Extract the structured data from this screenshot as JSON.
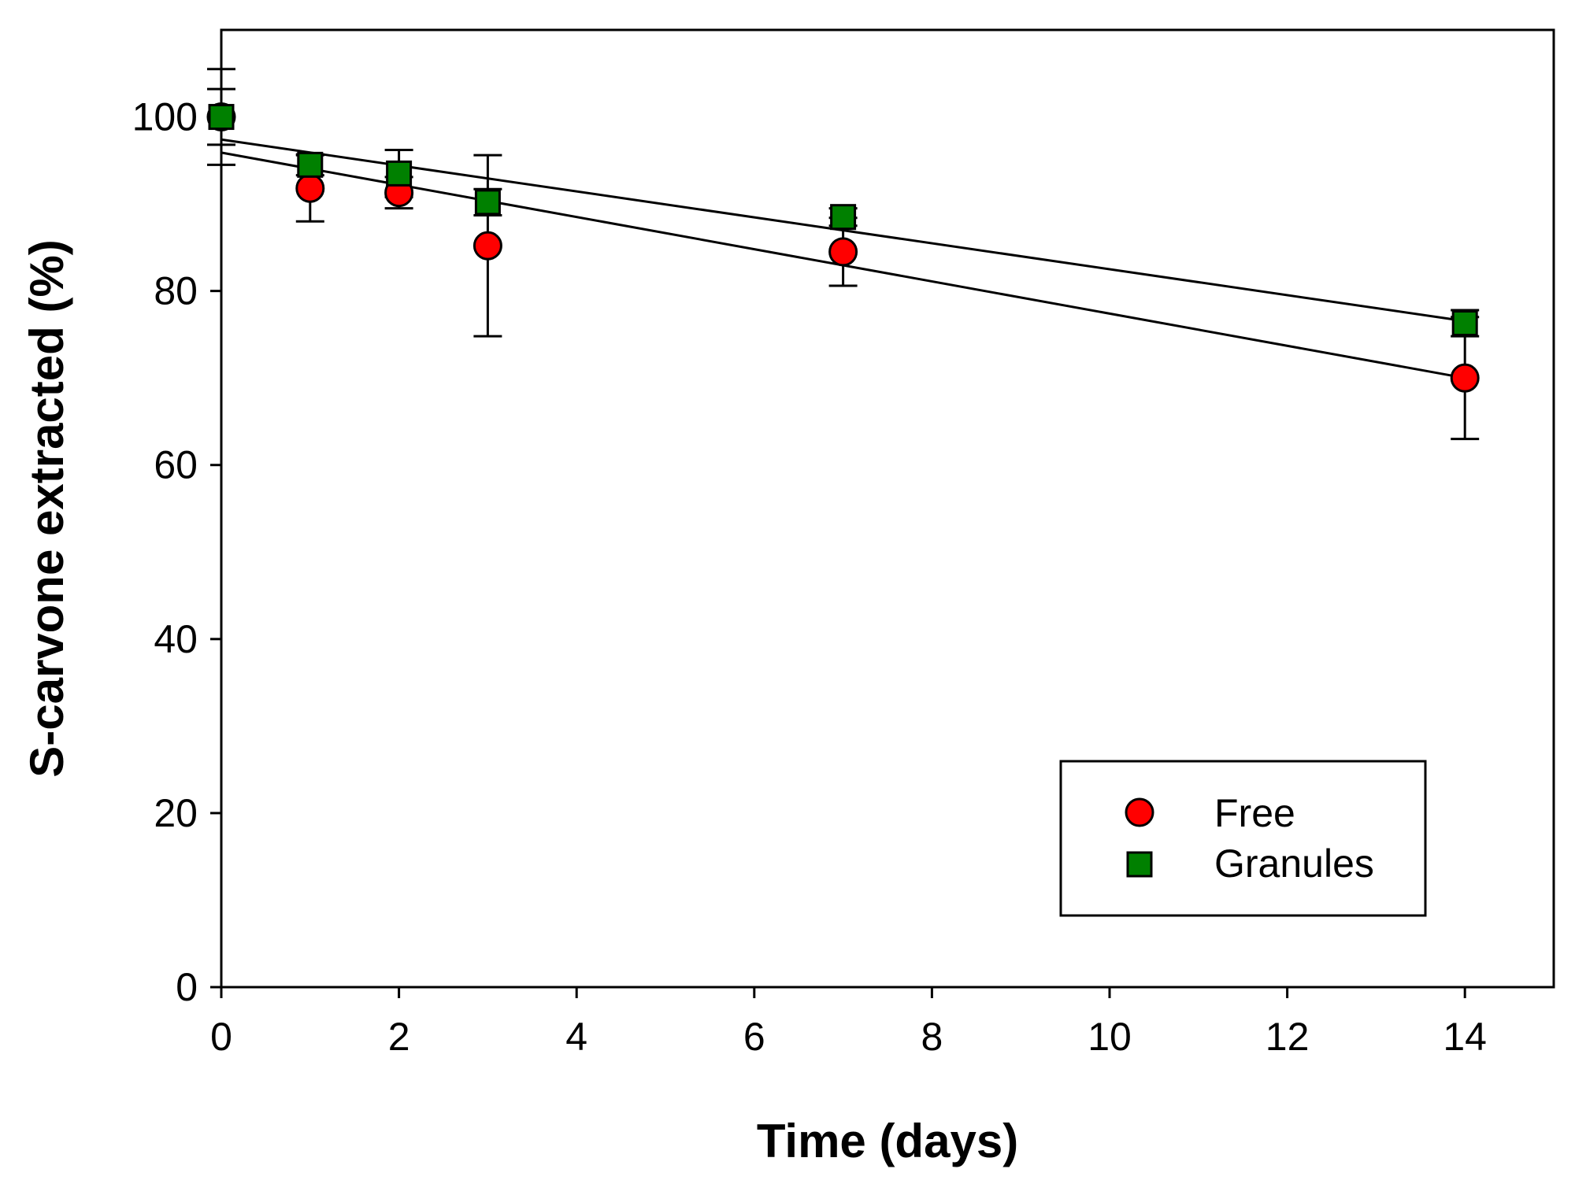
{
  "chart_data": {
    "type": "scatter",
    "title": "",
    "xlabel": "Time (days)",
    "ylabel": "S-carvone extracted (%)",
    "xlim": [
      0,
      15
    ],
    "ylim": [
      0,
      110
    ],
    "xticks": [
      0,
      2,
      4,
      6,
      8,
      10,
      12,
      14
    ],
    "yticks": [
      0,
      20,
      40,
      60,
      80,
      100
    ],
    "grid": false,
    "legend_position": "bottom-right",
    "series": [
      {
        "name": "Free",
        "marker": "circle",
        "color": "#ff0000",
        "x": [
          0,
          1,
          2,
          3,
          7,
          14
        ],
        "y": [
          100,
          91.8,
          91.3,
          85.2,
          84.5,
          70.0
        ],
        "error": [
          5.5,
          3.8,
          1.8,
          10.4,
          3.9,
          7.0
        ],
        "fit": {
          "intercept": 95.9,
          "slope": -1.85
        }
      },
      {
        "name": "Granules",
        "marker": "square",
        "color": "#008000",
        "x": [
          0,
          1,
          2,
          3,
          7,
          14
        ],
        "y": [
          100,
          94.5,
          93.5,
          90.2,
          88.5,
          76.3
        ],
        "error": [
          3.2,
          1.2,
          2.7,
          1.5,
          1.0,
          1.5
        ],
        "fit": {
          "intercept": 97.4,
          "slope": -1.49
        }
      }
    ]
  }
}
